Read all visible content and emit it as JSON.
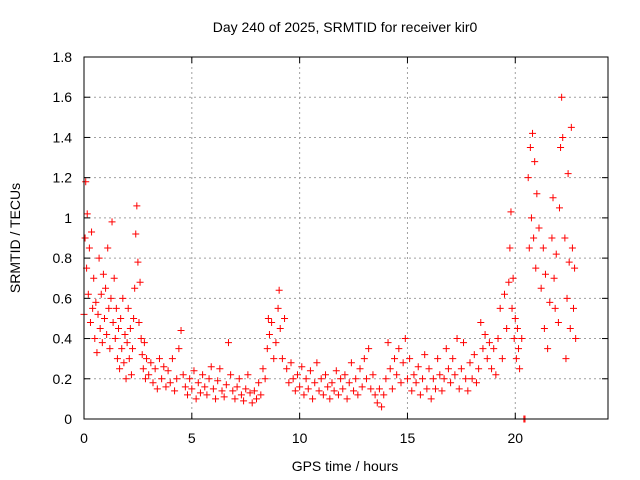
{
  "chart_data": {
    "type": "scatter",
    "title": "Day 240 of 2025, SRMTID for receiver kir0",
    "xlabel": "GPS time / hours",
    "ylabel": "SRMTID / TECUs",
    "xlim": [
      0,
      24.3
    ],
    "ylim": [
      0,
      1.8
    ],
    "x_ticks": [
      0,
      5,
      10,
      15,
      20
    ],
    "x_tick_labels": [
      "0",
      "5",
      "10",
      "15",
      "20"
    ],
    "y_ticks": [
      0,
      0.2,
      0.4,
      0.6,
      0.8,
      1.0,
      1.2,
      1.4,
      1.6,
      1.8
    ],
    "y_tick_labels": [
      "0",
      "0.2",
      "0.4",
      "0.6",
      "0.8",
      "1",
      "1.2",
      "1.4",
      "1.6",
      "1.8"
    ],
    "grid": true,
    "marker": "plus",
    "marker_color": "#ff0000",
    "series": [
      {
        "name": "SRMTID",
        "points": [
          [
            0.0,
            0.52
          ],
          [
            0.05,
            0.9
          ],
          [
            0.08,
            1.18
          ],
          [
            0.12,
            0.75
          ],
          [
            0.15,
            1.02
          ],
          [
            0.2,
            0.62
          ],
          [
            0.25,
            0.85
          ],
          [
            0.3,
            0.48
          ],
          [
            0.35,
            0.93
          ],
          [
            0.4,
            0.55
          ],
          [
            0.45,
            0.7
          ],
          [
            0.5,
            0.4
          ],
          [
            0.55,
            0.58
          ],
          [
            0.6,
            0.33
          ],
          [
            0.65,
            0.52
          ],
          [
            0.7,
            0.8
          ],
          [
            0.75,
            0.45
          ],
          [
            0.8,
            0.62
          ],
          [
            0.85,
            0.38
          ],
          [
            0.9,
            0.72
          ],
          [
            0.95,
            0.5
          ],
          [
            1.0,
            0.65
          ],
          [
            1.05,
            0.42
          ],
          [
            1.1,
            0.85
          ],
          [
            1.15,
            0.55
          ],
          [
            1.2,
            0.35
          ],
          [
            1.25,
            0.6
          ],
          [
            1.3,
            0.98
          ],
          [
            1.35,
            0.48
          ],
          [
            1.4,
            0.7
          ],
          [
            1.45,
            0.4
          ],
          [
            1.5,
            0.55
          ],
          [
            1.55,
            0.3
          ],
          [
            1.6,
            0.45
          ],
          [
            1.65,
            0.25
          ],
          [
            1.7,
            0.5
          ],
          [
            1.75,
            0.35
          ],
          [
            1.8,
            0.6
          ],
          [
            1.85,
            0.28
          ],
          [
            1.9,
            0.42
          ],
          [
            1.95,
            0.2
          ],
          [
            2.0,
            0.38
          ],
          [
            2.05,
            0.55
          ],
          [
            2.1,
            0.3
          ],
          [
            2.15,
            0.45
          ],
          [
            2.2,
            0.22
          ],
          [
            2.25,
            0.35
          ],
          [
            2.3,
            0.5
          ],
          [
            2.35,
            0.65
          ],
          [
            2.4,
            0.92
          ],
          [
            2.45,
            1.06
          ],
          [
            2.5,
            0.78
          ],
          [
            2.55,
            0.48
          ],
          [
            2.6,
            0.68
          ],
          [
            2.65,
            0.4
          ],
          [
            2.7,
            0.32
          ],
          [
            2.75,
            0.25
          ],
          [
            2.8,
            0.38
          ],
          [
            2.85,
            0.2
          ],
          [
            2.9,
            0.3
          ],
          [
            3.0,
            0.22
          ],
          [
            3.1,
            0.28
          ],
          [
            3.2,
            0.18
          ],
          [
            3.3,
            0.25
          ],
          [
            3.4,
            0.15
          ],
          [
            3.5,
            0.3
          ],
          [
            3.6,
            0.2
          ],
          [
            3.7,
            0.26
          ],
          [
            3.8,
            0.16
          ],
          [
            3.9,
            0.24
          ],
          [
            4.0,
            0.18
          ],
          [
            4.1,
            0.3
          ],
          [
            4.2,
            0.14
          ],
          [
            4.3,
            0.2
          ],
          [
            4.4,
            0.35
          ],
          [
            4.5,
            0.44
          ],
          [
            4.6,
            0.22
          ],
          [
            4.7,
            0.16
          ],
          [
            4.8,
            0.12
          ],
          [
            4.9,
            0.2
          ],
          [
            5.0,
            0.15
          ],
          [
            5.1,
            0.24
          ],
          [
            5.2,
            0.1
          ],
          [
            5.3,
            0.18
          ],
          [
            5.4,
            0.13
          ],
          [
            5.5,
            0.22
          ],
          [
            5.6,
            0.16
          ],
          [
            5.7,
            0.12
          ],
          [
            5.8,
            0.2
          ],
          [
            5.9,
            0.26
          ],
          [
            6.0,
            0.15
          ],
          [
            6.1,
            0.1
          ],
          [
            6.2,
            0.19
          ],
          [
            6.3,
            0.25
          ],
          [
            6.4,
            0.14
          ],
          [
            6.5,
            0.11
          ],
          [
            6.6,
            0.17
          ],
          [
            6.7,
            0.38
          ],
          [
            6.8,
            0.22
          ],
          [
            6.9,
            0.14
          ],
          [
            7.0,
            0.1
          ],
          [
            7.1,
            0.16
          ],
          [
            7.2,
            0.2
          ],
          [
            7.3,
            0.12
          ],
          [
            7.4,
            0.09
          ],
          [
            7.5,
            0.15
          ],
          [
            7.6,
            0.22
          ],
          [
            7.7,
            0.13
          ],
          [
            7.8,
            0.08
          ],
          [
            7.9,
            0.14
          ],
          [
            8.0,
            0.1
          ],
          [
            8.1,
            0.18
          ],
          [
            8.2,
            0.12
          ],
          [
            8.3,
            0.25
          ],
          [
            8.4,
            0.2
          ],
          [
            8.5,
            0.35
          ],
          [
            8.55,
            0.5
          ],
          [
            8.6,
            0.42
          ],
          [
            8.7,
            0.48
          ],
          [
            8.8,
            0.3
          ],
          [
            8.9,
            0.38
          ],
          [
            9.0,
            0.55
          ],
          [
            9.05,
            0.64
          ],
          [
            9.1,
            0.45
          ],
          [
            9.2,
            0.3
          ],
          [
            9.3,
            0.5
          ],
          [
            9.4,
            0.25
          ],
          [
            9.5,
            0.18
          ],
          [
            9.6,
            0.28
          ],
          [
            9.7,
            0.2
          ],
          [
            9.8,
            0.14
          ],
          [
            9.9,
            0.22
          ],
          [
            10.0,
            0.16
          ],
          [
            10.1,
            0.26
          ],
          [
            10.2,
            0.12
          ],
          [
            10.3,
            0.2
          ],
          [
            10.4,
            0.15
          ],
          [
            10.5,
            0.24
          ],
          [
            10.6,
            0.1
          ],
          [
            10.7,
            0.18
          ],
          [
            10.8,
            0.28
          ],
          [
            10.9,
            0.14
          ],
          [
            11.0,
            0.2
          ],
          [
            11.1,
            0.12
          ],
          [
            11.2,
            0.22
          ],
          [
            11.3,
            0.16
          ],
          [
            11.4,
            0.1
          ],
          [
            11.5,
            0.18
          ],
          [
            11.6,
            0.14
          ],
          [
            11.7,
            0.24
          ],
          [
            11.8,
            0.12
          ],
          [
            11.9,
            0.2
          ],
          [
            12.0,
            0.15
          ],
          [
            12.1,
            0.22
          ],
          [
            12.2,
            0.1
          ],
          [
            12.3,
            0.18
          ],
          [
            12.4,
            0.28
          ],
          [
            12.5,
            0.14
          ],
          [
            12.6,
            0.2
          ],
          [
            12.7,
            0.12
          ],
          [
            12.8,
            0.25
          ],
          [
            12.9,
            0.16
          ],
          [
            13.0,
            0.3
          ],
          [
            13.1,
            0.2
          ],
          [
            13.2,
            0.35
          ],
          [
            13.3,
            0.15
          ],
          [
            13.4,
            0.22
          ],
          [
            13.5,
            0.12
          ],
          [
            13.6,
            0.08
          ],
          [
            13.7,
            0.15
          ],
          [
            13.8,
            0.06
          ],
          [
            13.9,
            0.12
          ],
          [
            14.0,
            0.2
          ],
          [
            14.1,
            0.38
          ],
          [
            14.2,
            0.25
          ],
          [
            14.3,
            0.15
          ],
          [
            14.4,
            0.3
          ],
          [
            14.5,
            0.22
          ],
          [
            14.6,
            0.35
          ],
          [
            14.7,
            0.18
          ],
          [
            14.8,
            0.28
          ],
          [
            14.9,
            0.4
          ],
          [
            15.0,
            0.2
          ],
          [
            15.1,
            0.3
          ],
          [
            15.2,
            0.14
          ],
          [
            15.3,
            0.22
          ],
          [
            15.4,
            0.18
          ],
          [
            15.5,
            0.26
          ],
          [
            15.6,
            0.12
          ],
          [
            15.7,
            0.2
          ],
          [
            15.8,
            0.32
          ],
          [
            15.9,
            0.15
          ],
          [
            16.0,
            0.25
          ],
          [
            16.1,
            0.1
          ],
          [
            16.2,
            0.2
          ],
          [
            16.3,
            0.15
          ],
          [
            16.4,
            0.3
          ],
          [
            16.5,
            0.22
          ],
          [
            16.6,
            0.14
          ],
          [
            16.7,
            0.2
          ],
          [
            16.8,
            0.35
          ],
          [
            16.9,
            0.25
          ],
          [
            17.0,
            0.18
          ],
          [
            17.1,
            0.3
          ],
          [
            17.2,
            0.22
          ],
          [
            17.3,
            0.4
          ],
          [
            17.4,
            0.15
          ],
          [
            17.5,
            0.25
          ],
          [
            17.6,
            0.38
          ],
          [
            17.7,
            0.2
          ],
          [
            17.8,
            0.14
          ],
          [
            17.9,
            0.28
          ],
          [
            18.0,
            0.2
          ],
          [
            18.1,
            0.32
          ],
          [
            18.2,
            0.18
          ],
          [
            18.3,
            0.25
          ],
          [
            18.4,
            0.48
          ],
          [
            18.5,
            0.35
          ],
          [
            18.6,
            0.42
          ],
          [
            18.7,
            0.3
          ],
          [
            18.8,
            0.38
          ],
          [
            18.9,
            0.25
          ],
          [
            19.0,
            0.35
          ],
          [
            19.1,
            0.22
          ],
          [
            19.2,
            0.4
          ],
          [
            19.3,
            0.55
          ],
          [
            19.4,
            0.3
          ],
          [
            19.5,
            0.62
          ],
          [
            19.6,
            0.45
          ],
          [
            19.7,
            0.68
          ],
          [
            19.75,
            0.85
          ],
          [
            19.8,
            1.03
          ],
          [
            19.85,
            0.55
          ],
          [
            19.9,
            0.7
          ],
          [
            19.95,
            0.4
          ],
          [
            20.0,
            0.5
          ],
          [
            20.05,
            0.3
          ],
          [
            20.1,
            0.45
          ],
          [
            20.15,
            0.35
          ],
          [
            20.2,
            0.25
          ],
          [
            20.3,
            0.4
          ],
          [
            20.4,
            0.0
          ],
          [
            20.45,
            0.0
          ],
          [
            20.6,
            1.2
          ],
          [
            20.65,
            0.85
          ],
          [
            20.7,
            1.35
          ],
          [
            20.75,
            1.0
          ],
          [
            20.8,
            1.42
          ],
          [
            20.85,
            0.9
          ],
          [
            20.9,
            1.28
          ],
          [
            20.95,
            0.75
          ],
          [
            21.0,
            1.12
          ],
          [
            21.1,
            0.95
          ],
          [
            21.2,
            0.65
          ],
          [
            21.3,
            0.85
          ],
          [
            21.35,
            0.45
          ],
          [
            21.4,
            0.72
          ],
          [
            21.5,
            0.35
          ],
          [
            21.6,
            0.58
          ],
          [
            21.7,
            0.9
          ],
          [
            21.75,
            1.1
          ],
          [
            21.8,
            0.7
          ],
          [
            21.85,
            0.55
          ],
          [
            21.9,
            0.82
          ],
          [
            22.0,
            0.48
          ],
          [
            22.05,
            1.05
          ],
          [
            22.1,
            1.35
          ],
          [
            22.15,
            1.6
          ],
          [
            22.2,
            1.4
          ],
          [
            22.3,
            0.9
          ],
          [
            22.35,
            0.3
          ],
          [
            22.4,
            0.6
          ],
          [
            22.45,
            1.22
          ],
          [
            22.5,
            0.78
          ],
          [
            22.55,
            0.45
          ],
          [
            22.6,
            1.45
          ],
          [
            22.65,
            0.85
          ],
          [
            22.7,
            0.55
          ],
          [
            22.75,
            0.75
          ],
          [
            22.8,
            0.4
          ]
        ]
      }
    ]
  }
}
